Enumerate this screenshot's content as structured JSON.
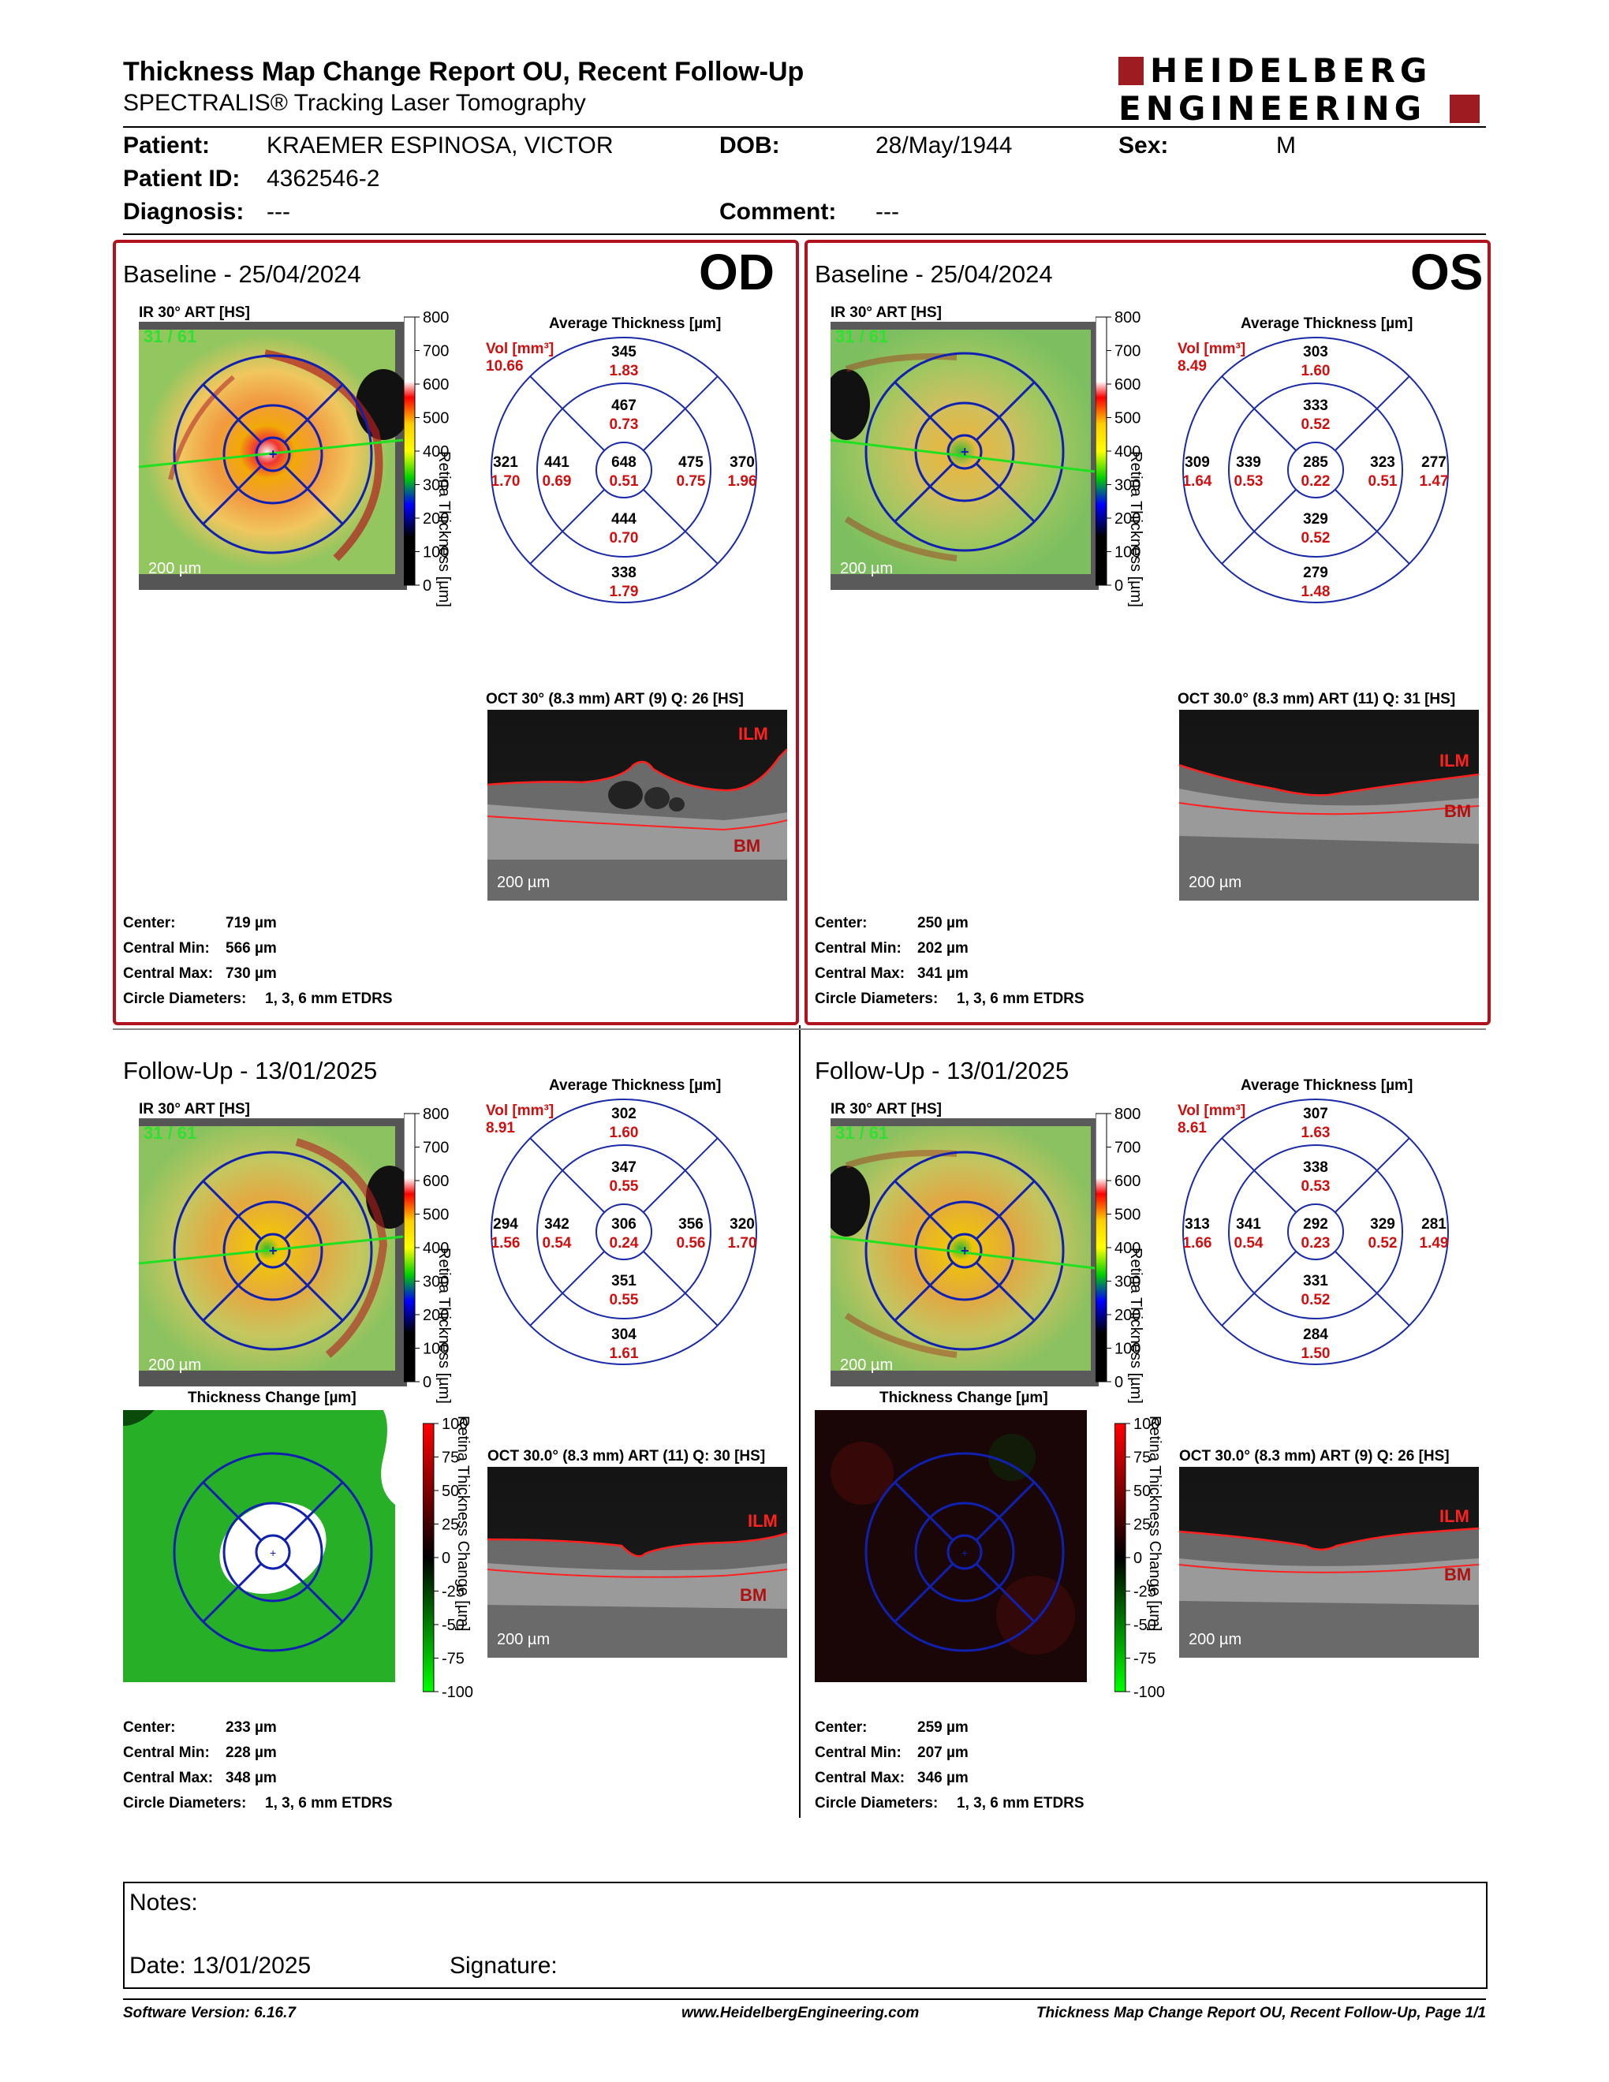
{
  "report": {
    "title": "Thickness Map Change Report OU, Recent Follow-Up",
    "subtitle": "SPECTRALIS® Tracking Laser Tomography",
    "logo_line1": "HEIDELBERG",
    "logo_line2": "ENGINEERING"
  },
  "patient": {
    "patient_label": "Patient:",
    "patient_value": "KRAEMER ESPINOSA, VICTOR",
    "dob_label": "DOB:",
    "dob_value": "28/May/1944",
    "sex_label": "Sex:",
    "sex_value": "M",
    "id_label": "Patient ID:",
    "id_value": "4362546-2",
    "diagnosis_label": "Diagnosis:",
    "diagnosis_value": "---",
    "comment_label": "Comment:",
    "comment_value": "---"
  },
  "panels": {
    "od_base": {
      "title": "Baseline - 25/04/2024",
      "eye": "OD",
      "ir_label": "IR 30° ART [HS]",
      "ir_count": "31 / 61",
      "scalebar": "200 µm",
      "avg_title": "Average Thickness [µm]",
      "vol_label": "Vol [mm³]",
      "vol_value": "10.66",
      "sectors": {
        "c": [
          "648",
          "0.51"
        ],
        "in": [
          "467",
          "0.73"
        ],
        "ii": [
          "444",
          "0.70"
        ],
        "it": [
          "441",
          "0.69"
        ],
        "in_n": [
          "475",
          "0.75"
        ],
        "on": [
          "345",
          "1.83"
        ],
        "oi": [
          "338",
          "1.79"
        ],
        "ot": [
          "321",
          "1.70"
        ],
        "onas": [
          "370",
          "1.96"
        ]
      },
      "oct_label": "OCT 30° (8.3 mm) ART (9) Q: 26 [HS]",
      "ilm": "ILM",
      "bm": "BM",
      "oct_scalebar": "200 µm",
      "center_label": "Center:",
      "center_value": "719 µm",
      "cmin_label": "Central Min:",
      "cmin_value": "566 µm",
      "cmax_label": "Central Max:",
      "cmax_value": "730 µm",
      "circ_label": "Circle Diameters:",
      "circ_value": "1, 3, 6 mm ETDRS"
    },
    "os_base": {
      "title": "Baseline - 25/04/2024",
      "eye": "OS",
      "ir_label": "IR 30° ART [HS]",
      "ir_count": "31 / 61",
      "scalebar": "200 µm",
      "avg_title": "Average Thickness [µm]",
      "vol_label": "Vol [mm³]",
      "vol_value": "8.49",
      "sectors": {
        "c": [
          "285",
          "0.22"
        ],
        "in": [
          "333",
          "0.52"
        ],
        "ii": [
          "329",
          "0.52"
        ],
        "it": [
          "339",
          "0.53"
        ],
        "in_n": [
          "323",
          "0.51"
        ],
        "on": [
          "303",
          "1.60"
        ],
        "oi": [
          "279",
          "1.48"
        ],
        "ot": [
          "309",
          "1.64"
        ],
        "onas": [
          "277",
          "1.47"
        ]
      },
      "oct_label": "OCT 30.0° (8.3 mm) ART (11) Q: 31 [HS]",
      "ilm": "ILM",
      "bm": "BM",
      "oct_scalebar": "200 µm",
      "center_label": "Center:",
      "center_value": "250 µm",
      "cmin_label": "Central Min:",
      "cmin_value": "202 µm",
      "cmax_label": "Central Max:",
      "cmax_value": "341 µm",
      "circ_label": "Circle Diameters:",
      "circ_value": "1, 3, 6 mm ETDRS"
    },
    "od_fu": {
      "title": "Follow-Up - 13/01/2025",
      "ir_label": "IR 30° ART [HS]",
      "ir_count": "31 / 61",
      "scalebar": "200 µm",
      "avg_title": "Average Thickness [µm]",
      "vol_label": "Vol [mm³]",
      "vol_value": "8.91",
      "sectors": {
        "c": [
          "306",
          "0.24"
        ],
        "in": [
          "347",
          "0.55"
        ],
        "ii": [
          "351",
          "0.55"
        ],
        "it": [
          "342",
          "0.54"
        ],
        "in_n": [
          "356",
          "0.56"
        ],
        "on": [
          "302",
          "1.60"
        ],
        "oi": [
          "304",
          "1.61"
        ],
        "ot": [
          "294",
          "1.56"
        ],
        "onas": [
          "320",
          "1.70"
        ]
      },
      "change_title": "Thickness Change [µm]",
      "oct_label": "OCT 30.0° (8.3 mm) ART (11) Q: 30 [HS]",
      "ilm": "ILM",
      "bm": "BM",
      "oct_scalebar": "200 µm",
      "center_label": "Center:",
      "center_value": "233 µm",
      "cmin_label": "Central Min:",
      "cmin_value": "228 µm",
      "cmax_label": "Central Max:",
      "cmax_value": "348 µm",
      "circ_label": "Circle Diameters:",
      "circ_value": "1, 3, 6 mm ETDRS"
    },
    "os_fu": {
      "title": "Follow-Up - 13/01/2025",
      "ir_label": "IR 30° ART [HS]",
      "ir_count": "31 / 61",
      "scalebar": "200 µm",
      "avg_title": "Average Thickness [µm]",
      "vol_label": "Vol [mm³]",
      "vol_value": "8.61",
      "sectors": {
        "c": [
          "292",
          "0.23"
        ],
        "in": [
          "338",
          "0.53"
        ],
        "ii": [
          "331",
          "0.52"
        ],
        "it": [
          "341",
          "0.54"
        ],
        "in_n": [
          "329",
          "0.52"
        ],
        "on": [
          "307",
          "1.63"
        ],
        "oi": [
          "284",
          "1.50"
        ],
        "ot": [
          "313",
          "1.66"
        ],
        "onas": [
          "281",
          "1.49"
        ]
      },
      "change_title": "Thickness Change [µm]",
      "oct_label": "OCT 30.0° (8.3 mm) ART (9) Q: 26 [HS]",
      "ilm": "ILM",
      "bm": "BM",
      "oct_scalebar": "200 µm",
      "center_label": "Center:",
      "center_value": "259 µm",
      "cmin_label": "Central Min:",
      "cmin_value": "207 µm",
      "cmax_label": "Central Max:",
      "cmax_value": "346 µm",
      "circ_label": "Circle Diameters:",
      "circ_value": "1, 3, 6 mm ETDRS"
    }
  },
  "scales": {
    "thickness_label": "Retina Thickness [µm]",
    "thickness_ticks": [
      "800",
      "700",
      "600",
      "500",
      "400",
      "300",
      "200",
      "100",
      "0"
    ],
    "change_label": "Retina Thickness Change [µm]",
    "change_ticks": [
      "100",
      "75",
      "50",
      "25",
      "0",
      "-25",
      "-50",
      "-75",
      "-100"
    ]
  },
  "notes": {
    "notes_label": "Notes:",
    "date_label": "Date: 13/01/2025",
    "signature_label": "Signature:"
  },
  "footer": {
    "version": "Software Version: 6.16.7",
    "url": "www.HeidelbergEngineering.com",
    "page": "Thickness Map Change Report OU, Recent Follow-Up, Page 1/1"
  }
}
